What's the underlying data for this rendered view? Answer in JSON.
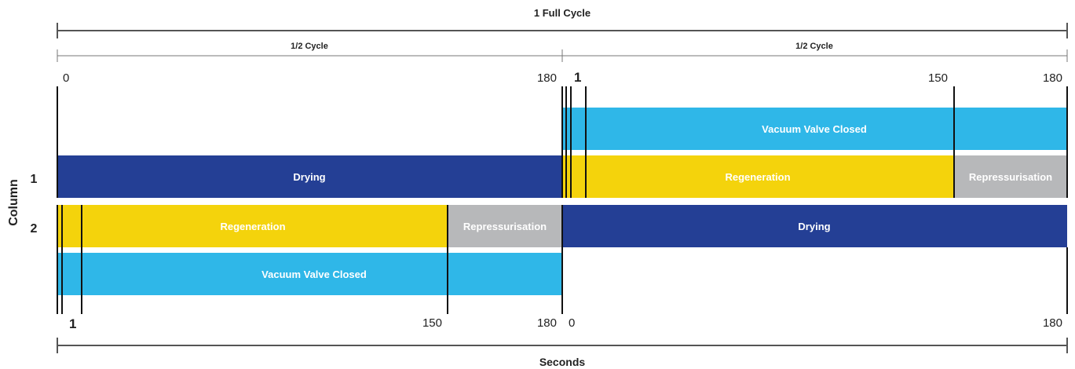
{
  "header": {
    "full_cycle_label": "1 Full Cycle",
    "half_cycle_left_label": "1/2 Cycle",
    "half_cycle_right_label": "1/2 Cycle"
  },
  "top_ticks": {
    "left_start": "0",
    "left_end": "180",
    "right_marker": "1",
    "right_150": "150",
    "right_end": "180"
  },
  "bottom_ticks": {
    "left_marker": "1",
    "left_150": "150",
    "left_end": "180",
    "right_start": "0",
    "right_end": "180"
  },
  "axis": {
    "y_title": "Column",
    "column_1": "1",
    "column_2": "2",
    "x_title": "Seconds"
  },
  "bars": {
    "c1_vacuum": "Vacuum Valve Closed",
    "c1_drying": "Drying",
    "c1_regeneration": "Regeneration",
    "c1_repress": "Repressurisation",
    "c2_regeneration": "Regeneration",
    "c2_repress": "Repressurisation",
    "c2_drying": "Drying",
    "c2_vacuum": "Vacuum Valve Closed"
  },
  "colors": {
    "drying": "#243f95",
    "regeneration": "#f4d30c",
    "repressurisation": "#b7b8ba",
    "vacuum_valve_closed": "#2fb7e8"
  }
}
